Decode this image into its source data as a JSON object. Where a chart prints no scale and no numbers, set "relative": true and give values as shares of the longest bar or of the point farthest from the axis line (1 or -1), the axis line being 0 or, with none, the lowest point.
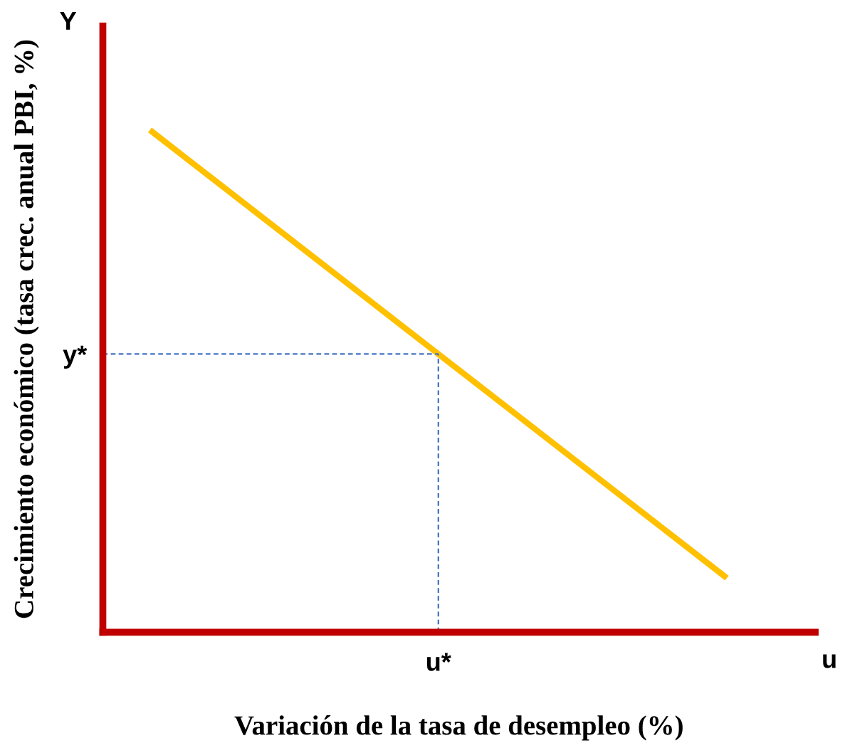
{
  "chart_data": {
    "type": "line",
    "relative": true,
    "xlabel": "Variación de la tasa de desempleo (%)",
    "ylabel": "Crecimiento económico (tasa crec. anual PBI, %)",
    "categories": [
      null,
      null,
      null
    ],
    "series": [
      {
        "color": "#ffc000",
        "values": [
          1,
          0.554,
          0.108
        ]
      }
    ],
    "ref_lines": [
      {
        "axis": "y",
        "value": 0.554,
        "label": "y*",
        "color": "#4472c4",
        "line_style": "dashed"
      }
    ],
    "annotations": [
      "Y",
      "u",
      "u*"
    ],
    "grid": false,
    "legend": false,
    "marker": "none",
    "line_style": "solid"
  }
}
